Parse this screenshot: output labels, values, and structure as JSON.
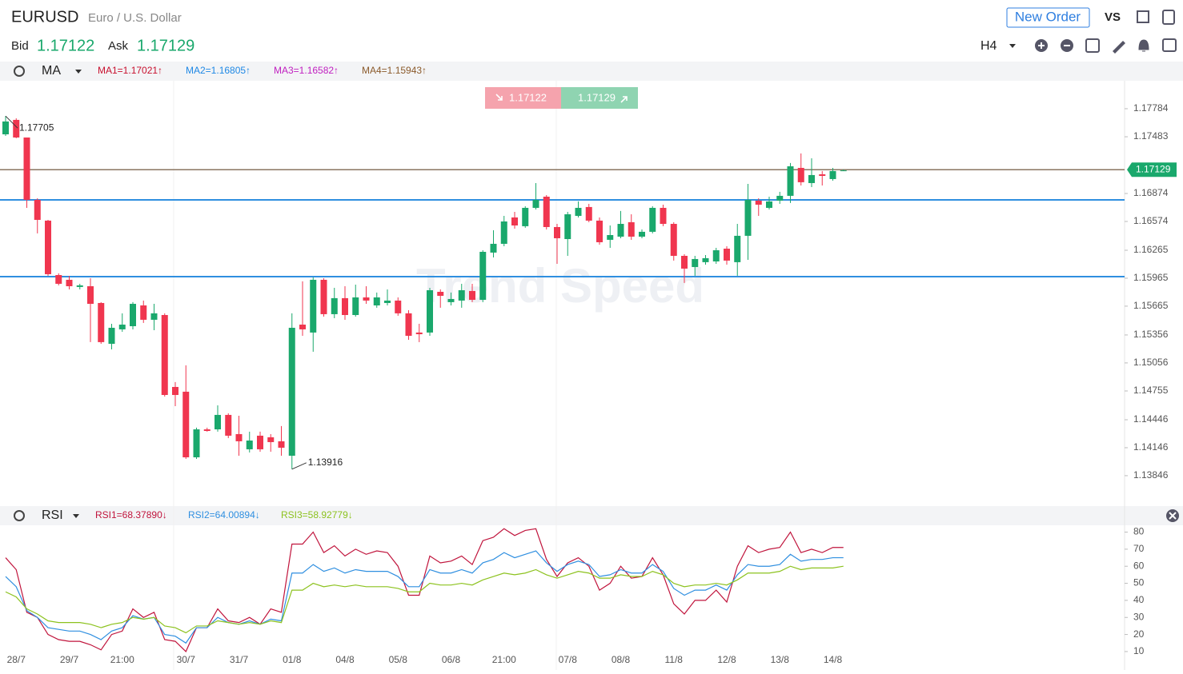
{
  "header": {
    "symbol": "EURUSD",
    "description": "Euro / U.S. Dollar",
    "new_order": "New Order",
    "vs": "VS",
    "bid_label": "Bid",
    "bid": 1.17122,
    "ask_label": "Ask",
    "ask": 1.17129,
    "timeframe": "H4"
  },
  "chart_data": [
    {
      "type": "candlestick",
      "indicator": "MA",
      "watermark": "Trend Speed",
      "legend": [
        {
          "name": "MA1=1.17021↑",
          "color": "#c8102e"
        },
        {
          "name": "MA2=1.16805↑",
          "color": "#1e88e5"
        },
        {
          "name": "MA3=1.16582↑",
          "color": "#c020c0"
        },
        {
          "name": "MA4=1.15943↑",
          "color": "#8b5a2b"
        }
      ],
      "categories": [
        null,
        "28/7",
        null,
        null,
        null,
        null,
        "29/7",
        null,
        null,
        null,
        null,
        "21:00",
        null,
        null,
        null,
        null,
        null,
        "30/7",
        null,
        null,
        null,
        null,
        "31/7",
        null,
        null,
        null,
        null,
        "01/8",
        null,
        null,
        null,
        null,
        "04/8",
        null,
        null,
        null,
        null,
        "05/8",
        null,
        null,
        null,
        null,
        "06/8",
        null,
        null,
        null,
        null,
        "21:00",
        null,
        null,
        null,
        null,
        null,
        "07/8",
        null,
        null,
        null,
        null,
        "08/8",
        null,
        null,
        null,
        null,
        "11/8",
        null,
        null,
        null,
        null,
        "12/8",
        null,
        null,
        null,
        null,
        "13/8",
        null,
        null,
        null,
        null,
        "14/8",
        null
      ],
      "open": [
        1.17509,
        1.17664,
        1.17475,
        1.16806,
        1.16583,
        1.15999,
        1.15948,
        1.15871,
        1.15879,
        1.15699,
        1.15261,
        1.15416,
        1.1545,
        1.15673,
        1.15519,
        1.1557,
        1.14798,
        1.14747,
        1.14043,
        1.14343,
        1.14343,
        1.14498,
        1.14292,
        1.14129,
        1.14275,
        1.14258,
        1.14215,
        1.1406,
        1.15467,
        1.15382,
        1.15948,
        1.15579,
        1.15751,
        1.1557,
        1.15759,
        1.15673,
        1.15699,
        1.15725,
        1.15588,
        1.15382,
        1.15382,
        1.15819,
        1.15708,
        1.15725,
        1.15828,
        1.15733,
        1.1624,
        1.16334,
        1.16617,
        1.16523,
        1.1672,
        1.1684,
        1.16514,
        1.16385,
        1.16634,
        1.16729,
        1.16583,
        1.16377,
        1.16411,
        1.16566,
        1.16411,
        1.16463,
        1.1672,
        1.16548,
        1.16205,
        1.16085,
        1.16137,
        1.16145,
        1.16282,
        1.16137,
        1.1642,
        1.16797,
        1.1672,
        1.16797,
        1.16849,
        1.17149,
        1.16986,
        1.1708,
        1.17029,
        1.17115
      ],
      "high": [
        1.17705,
        1.17681,
        1.17475,
        1.16823,
        1.16591,
        1.16017,
        1.15991,
        1.15905,
        1.15965,
        1.15708,
        1.15476,
        1.15588,
        1.15708,
        1.15725,
        1.1569,
        1.15588,
        1.1485,
        1.1503,
        1.14361,
        1.14361,
        1.14601,
        1.14515,
        1.14489,
        1.14318,
        1.14318,
        1.14292,
        1.14378,
        1.15588,
        1.15931,
        1.15974,
        1.15965,
        1.15862,
        1.15879,
        1.15896,
        1.15879,
        1.15811,
        1.15845,
        1.15759,
        1.15622,
        1.15476,
        1.15862,
        1.15845,
        1.15811,
        1.15905,
        1.15905,
        1.16265,
        1.1648,
        1.16634,
        1.16677,
        1.16737,
        1.16986,
        1.16857,
        1.16548,
        1.16677,
        1.16789,
        1.16763,
        1.16617,
        1.16531,
        1.16686,
        1.16651,
        1.16488,
        1.16737,
        1.16754,
        1.16566,
        1.16222,
        1.16205,
        1.16214,
        1.16291,
        1.16308,
        1.16548,
        1.16977,
        1.16823,
        1.1684,
        1.16892,
        1.17201,
        1.17304,
        1.17252,
        1.17115,
        1.17149,
        1.17132
      ],
      "low": [
        1.17492,
        1.17467,
        1.1672,
        1.16446,
        1.15991,
        1.15888,
        1.15845,
        1.15845,
        1.15279,
        1.15261,
        1.15201,
        1.1539,
        1.15416,
        1.15485,
        1.15407,
        1.14695,
        1.14592,
        1.14026,
        1.14026,
        1.14318,
        1.14318,
        1.14249,
        1.1406,
        1.14095,
        1.14103,
        1.14103,
        1.1406,
        1.13916,
        1.15347,
        1.15176,
        1.15553,
        1.15536,
        1.15519,
        1.15553,
        1.1569,
        1.15648,
        1.15673,
        1.15562,
        1.15304,
        1.15279,
        1.15347,
        1.15648,
        1.15673,
        1.15648,
        1.15708,
        1.15708,
        1.16188,
        1.16308,
        1.16497,
        1.16506,
        1.16703,
        1.16488,
        1.16119,
        1.16205,
        1.16617,
        1.16566,
        1.16325,
        1.16291,
        1.16394,
        1.16377,
        1.16394,
        1.16446,
        1.16523,
        1.16154,
        1.15914,
        1.15991,
        1.16111,
        1.16119,
        1.16111,
        1.15991,
        1.16162,
        1.16634,
        1.16703,
        1.16763,
        1.16772,
        1.1696,
        1.16943,
        1.1696,
        1.17012,
        1.17115
      ],
      "close": [
        1.17647,
        1.17475,
        1.16806,
        1.16591,
        1.16008,
        1.15905,
        1.15879,
        1.15888,
        1.1569,
        1.15279,
        1.15433,
        1.15467,
        1.1569,
        1.15519,
        1.15588,
        1.14712,
        1.14712,
        1.14043,
        1.14343,
        1.14326,
        1.14498,
        1.14275,
        1.14215,
        1.14223,
        1.14129,
        1.14206,
        1.14146,
        1.15433,
        1.15416,
        1.15948,
        1.15579,
        1.15751,
        1.1557,
        1.15759,
        1.15725,
        1.15759,
        1.15725,
        1.15588,
        1.15347,
        1.15364,
        1.15836,
        1.15776,
        1.15742,
        1.15836,
        1.15733,
        1.16248,
        1.16334,
        1.16574,
        1.16531,
        1.1672,
        1.16806,
        1.16514,
        1.16394,
        1.16651,
        1.1672,
        1.16583,
        1.16351,
        1.16428,
        1.16548,
        1.16411,
        1.16463,
        1.1672,
        1.16548,
        1.16205,
        1.16068,
        1.16171,
        1.1618,
        1.16265,
        1.16154,
        1.1642,
        1.16806,
        1.16754,
        1.16789,
        1.16849,
        1.17166,
        1.16995,
        1.17072,
        1.17063,
        1.17115,
        1.17122
      ],
      "up_color": "#1aa86c",
      "down_color": "#f0364f",
      "ylim": [
        1.13528,
        1.18084
      ],
      "yticks": [
        1.17784,
        1.17483,
        1.16874,
        1.16574,
        1.16265,
        1.15965,
        1.15665,
        1.15356,
        1.15056,
        1.14755,
        1.14446,
        1.14146,
        1.13846
      ],
      "levels": [
        {
          "value": 1.16806,
          "color": "#2f8fe0"
        },
        {
          "value": 1.15982,
          "color": "#2f8fe0"
        }
      ],
      "current_price": {
        "value": 1.17129,
        "color": "#8a7560",
        "badge_color": "#1aa86c"
      },
      "sell_price": 1.17122,
      "buy_price": 1.17129
    },
    {
      "type": "line",
      "indicator": "RSI",
      "series": [
        {
          "name": "RSI1=68.37890↓",
          "color": "#c0143c",
          "values": [
            65,
            58,
            33,
            30,
            20,
            17,
            16,
            16,
            14,
            11,
            20,
            22,
            35,
            30,
            33,
            17,
            16,
            10,
            24,
            24,
            35,
            28,
            27,
            30,
            26,
            35,
            33,
            73,
            73,
            80,
            68,
            72,
            66,
            70,
            67,
            69,
            68,
            60,
            43,
            43,
            66,
            62,
            63,
            66,
            61,
            75,
            77,
            82,
            78,
            81,
            82,
            64,
            54,
            62,
            65,
            60,
            46,
            50,
            60,
            53,
            54,
            65,
            55,
            38,
            32,
            40,
            40,
            46,
            39,
            60,
            72,
            68,
            70,
            71,
            80,
            68,
            70,
            68,
            71,
            71
          ]
        },
        {
          "name": "RSI2=64.00894↓",
          "color": "#2f8fe0",
          "values": [
            54,
            48,
            34,
            30,
            24,
            23,
            22,
            22,
            20,
            17,
            22,
            24,
            31,
            29,
            30,
            20,
            19,
            15,
            24,
            24,
            30,
            27,
            26,
            28,
            26,
            29,
            28,
            56,
            56,
            61,
            57,
            59,
            56,
            58,
            57,
            57,
            57,
            54,
            48,
            48,
            58,
            56,
            56,
            58,
            56,
            62,
            64,
            68,
            65,
            67,
            69,
            62,
            57,
            61,
            63,
            61,
            54,
            55,
            58,
            56,
            56,
            61,
            57,
            47,
            43,
            46,
            46,
            49,
            46,
            55,
            61,
            60,
            60,
            61,
            67,
            63,
            64,
            64,
            65,
            65
          ]
        },
        {
          "name": "RSI3=58.92779↓",
          "color": "#8cc21e",
          "values": [
            45,
            42,
            35,
            32,
            28,
            27,
            27,
            27,
            26,
            24,
            26,
            27,
            30,
            29,
            30,
            25,
            24,
            21,
            25,
            25,
            28,
            27,
            26,
            27,
            26,
            28,
            27,
            46,
            46,
            50,
            48,
            49,
            48,
            49,
            48,
            48,
            48,
            47,
            45,
            45,
            50,
            49,
            49,
            50,
            49,
            52,
            54,
            56,
            55,
            56,
            58,
            55,
            53,
            55,
            57,
            56,
            53,
            53,
            55,
            54,
            54,
            57,
            55,
            50,
            48,
            49,
            49,
            50,
            49,
            52,
            56,
            56,
            56,
            57,
            60,
            58,
            59,
            59,
            59,
            60
          ]
        }
      ],
      "ylim": [
        2,
        84
      ],
      "yticks": [
        80,
        70,
        60,
        50,
        40,
        30,
        20,
        10
      ]
    }
  ]
}
